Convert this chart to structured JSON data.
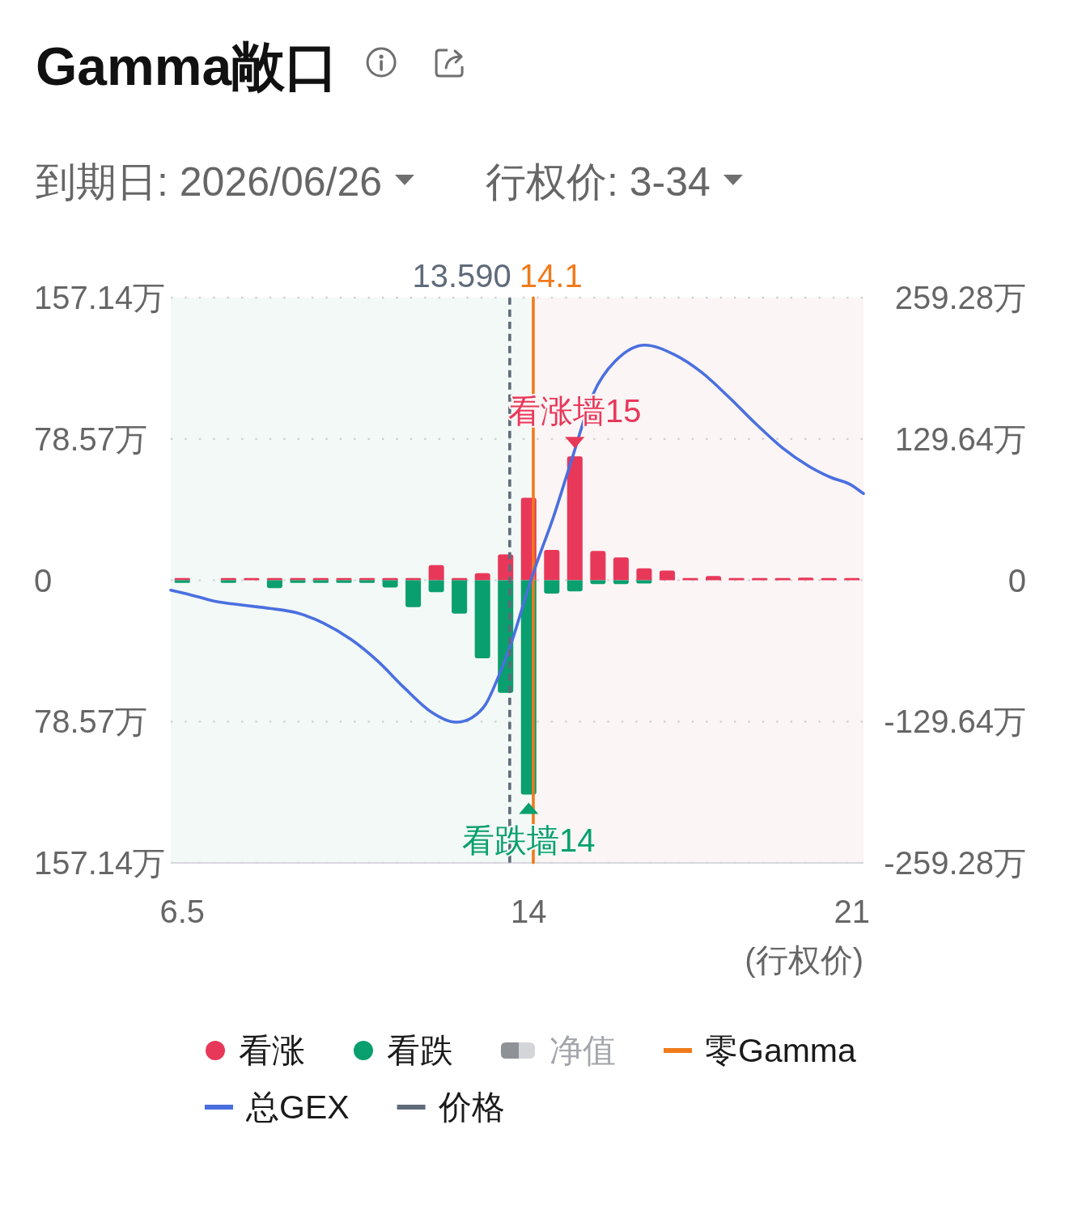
{
  "chart_data": {
    "type": "bar",
    "title": "Gamma敞口",
    "xlabel": "(行权价)",
    "x": [
      6.5,
      7,
      7.5,
      8,
      8.5,
      9,
      9.5,
      10,
      10.5,
      11,
      11.5,
      12,
      12.5,
      13,
      13.5,
      14,
      14.5,
      15,
      15.5,
      16,
      16.5,
      17,
      17.5,
      18,
      18.5,
      19,
      19.5,
      20,
      20.5,
      21
    ],
    "xlim": [
      6.25,
      21.25
    ],
    "xticks": [
      6.5,
      14,
      21
    ],
    "ylim": [
      -157.14,
      157.14
    ],
    "yticks": [
      {
        "value": -157.14,
        "label": "157.14万"
      },
      {
        "value": -78.57,
        "label": "78.57万"
      },
      0,
      {
        "value": 78.57,
        "label": "78.57万"
      },
      {
        "value": 157.14,
        "label": "157.14万"
      }
    ],
    "y2lim": [
      -259.28,
      259.28
    ],
    "y2ticks": [
      {
        "value": -259.28,
        "label": "-259.28万"
      },
      {
        "value": -129.64,
        "label": "-129.64万"
      },
      0,
      {
        "value": 129.64,
        "label": "129.64万"
      },
      {
        "value": 259.28,
        "label": "259.28万"
      }
    ],
    "stacked": true,
    "grid": "y",
    "legend": "bottom",
    "series": [
      {
        "name": "看涨",
        "color": "#e8385a",
        "values": [
          1.2,
          null,
          1.2,
          1.2,
          1.2,
          1.2,
          1.2,
          1.2,
          1.2,
          1.2,
          1.2,
          8.4,
          1.2,
          3.9,
          14.4,
          45.9,
          16.9,
          68.9,
          16.3,
          12.7,
          6.6,
          5.4,
          1.2,
          2.4,
          1.2,
          1.2,
          1.2,
          1.5,
          1.2,
          1.2
        ]
      },
      {
        "name": "看跌",
        "color": "#0a9f6e",
        "values": [
          -1.5,
          null,
          -1.5,
          null,
          -4.4,
          -1.5,
          -1.5,
          -1.5,
          -1.5,
          -4.1,
          -14.9,
          -6.6,
          -18.6,
          -43.4,
          -62.6,
          -119.2,
          -7.4,
          -6.2,
          -2.1,
          -2.1,
          -1.8,
          null,
          null,
          null,
          null,
          null,
          null,
          null,
          null,
          null
        ]
      },
      {
        "name": "净值",
        "color": "#8e9196",
        "values": [
          null,
          null,
          null,
          null,
          null,
          null,
          null,
          null,
          null,
          null,
          null,
          null,
          null,
          null,
          null,
          null,
          null,
          null,
          null,
          null,
          null,
          null,
          null,
          null,
          null,
          null,
          null,
          null,
          null,
          null
        ]
      },
      {
        "name": "零Gamma",
        "type": "line",
        "color": "#f07a1a",
        "x": [
          14.1,
          14.1
        ],
        "values": [
          -157,
          157
        ]
      },
      {
        "name": "总GEX",
        "type": "line",
        "axis": "y2",
        "color": "#4a6fe0",
        "x": [
          6.25,
          6.64,
          7.23,
          7.81,
          8.39,
          8.98,
          9.56,
          10.15,
          10.73,
          11.31,
          11.9,
          12.42,
          12.77,
          13.07,
          13.36,
          13.65,
          13.94,
          14.18,
          14.53,
          14.94,
          15.4,
          15.87,
          16.51,
          17.15,
          17.74,
          18.32,
          18.91,
          19.49,
          20.08,
          20.54,
          20.95,
          21.25
        ],
        "values": [
          -9.1,
          -12.9,
          -19.5,
          -22.8,
          -25.8,
          -29.9,
          -39.4,
          -54.2,
          -74.1,
          -98.8,
          -121.1,
          -130.2,
          -126.1,
          -113.7,
          -86.9,
          -54.2,
          -14.6,
          16.3,
          57.2,
          111.7,
          171.1,
          200.8,
          215.7,
          207.1,
          190.9,
          168.6,
          143.9,
          121.6,
          104.2,
          94.4,
          88.2,
          79.5
        ]
      },
      {
        "name": "价格",
        "type": "line",
        "line_style": "dashed",
        "color": "#5f6b7a",
        "x": [
          13.59,
          13.59
        ],
        "values": [
          -157,
          157
        ]
      }
    ],
    "bands": [
      {
        "axis": "x",
        "from": 6.25,
        "to": 14.1,
        "color": "#f2f9f6"
      },
      {
        "axis": "x",
        "from": 14.1,
        "to": 21.25,
        "color": "#fcf5f5"
      }
    ],
    "annotations": [
      "到期日: 2026/06/26",
      "行权价: 3-34",
      {
        "text": "13.590",
        "x": 13.59,
        "y": 157
      },
      {
        "text": "14.1",
        "x": 14.1,
        "y": 157
      },
      {
        "text": "看涨墙15",
        "x": 15,
        "y": 68.9
      },
      {
        "text": "看跌墙14",
        "x": 14,
        "y": -119.2
      }
    ]
  }
}
